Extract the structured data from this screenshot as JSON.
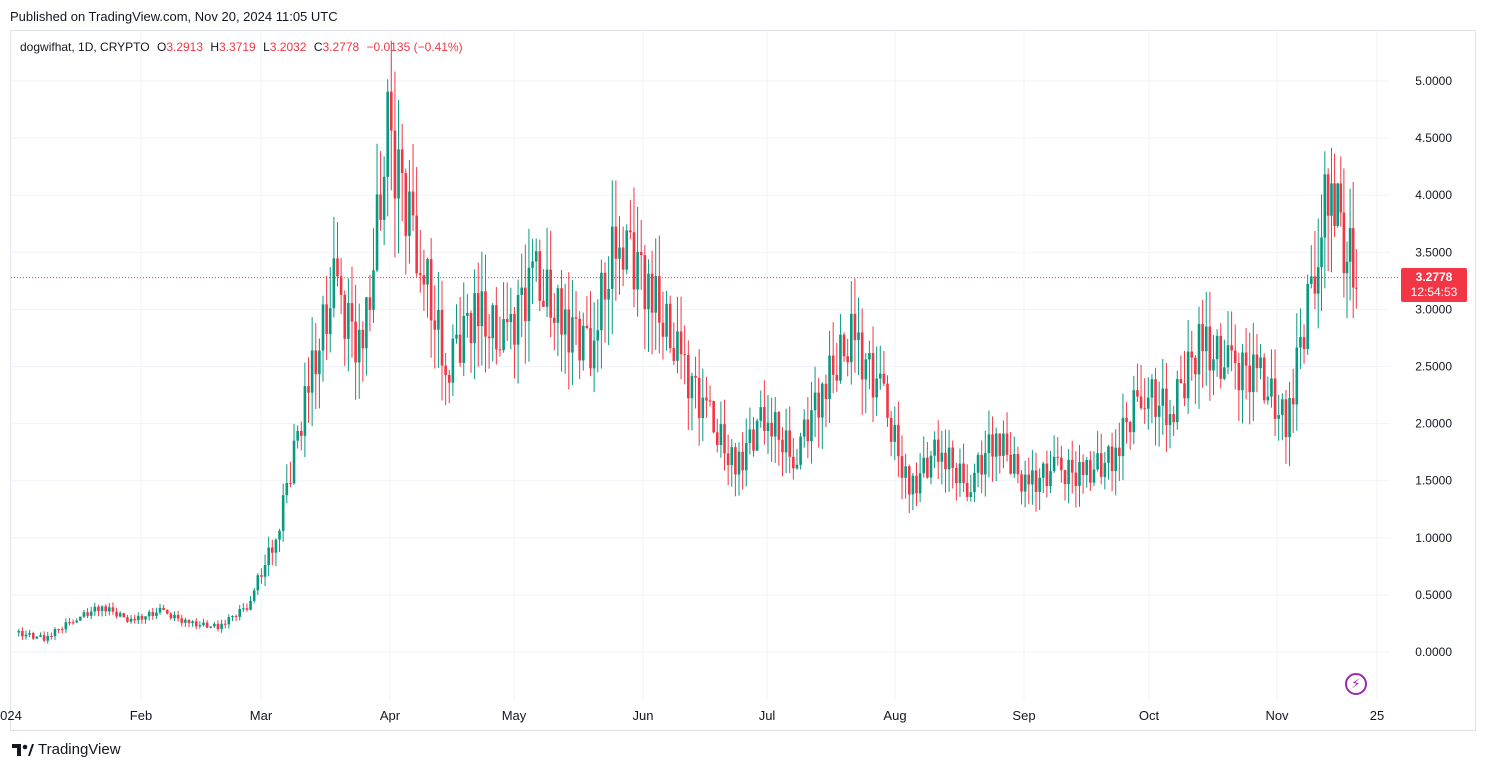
{
  "header": {
    "published": "Published on TradingView.com, Nov 20, 2024 11:05 UTC"
  },
  "legend": {
    "symbol": "dogwifhat, 1D, CRYPTO",
    "o_label": "O",
    "o": "3.2913",
    "h_label": "H",
    "h": "3.3719",
    "l_label": "L",
    "l": "3.2032",
    "c_label": "C",
    "c": "3.2778",
    "change": "−0.0135 (−0.41%)"
  },
  "price_tag": {
    "price": "3.2778",
    "countdown": "12:54:53"
  },
  "footer": {
    "brand": "TradingView",
    "logo_icon": "tradingview-logo-icon"
  },
  "colors": {
    "up": "#089981",
    "down": "#f23645",
    "grid": "#f0f3fa",
    "accent": "#9c27b0"
  },
  "chart_data": {
    "type": "candlestick",
    "y_ticks": [
      "5.0000",
      "4.5000",
      "4.0000",
      "3.5000",
      "3.0000",
      "2.5000",
      "2.0000",
      "1.5000",
      "1.0000",
      "0.5000",
      "0.0000"
    ],
    "x_ticks": [
      "024",
      "Feb",
      "Mar",
      "Apr",
      "May",
      "Jun",
      "Jul",
      "Aug",
      "Sep",
      "Oct",
      "Nov",
      "25"
    ],
    "ylim": [
      -0.4,
      5.5
    ],
    "last_price": 3.2778,
    "series": [
      {
        "date": "2024-01-01",
        "close": 0.17
      },
      {
        "date": "2024-01-08",
        "close": 0.12
      },
      {
        "date": "2024-01-15",
        "close": 0.28
      },
      {
        "date": "2024-01-22",
        "close": 0.4
      },
      {
        "date": "2024-01-29",
        "close": 0.27
      },
      {
        "date": "2024-02-05",
        "close": 0.36
      },
      {
        "date": "2024-02-12",
        "close": 0.25
      },
      {
        "date": "2024-02-19",
        "close": 0.22
      },
      {
        "date": "2024-02-26",
        "close": 0.4
      },
      {
        "date": "2024-03-04",
        "close": 1.0
      },
      {
        "date": "2024-03-11",
        "close": 2.2
      },
      {
        "date": "2024-03-18",
        "close": 3.2
      },
      {
        "date": "2024-03-25",
        "close": 2.6
      },
      {
        "date": "2024-03-31",
        "close": 4.55
      },
      {
        "date": "2024-04-07",
        "close": 3.6
      },
      {
        "date": "2024-04-14",
        "close": 2.5
      },
      {
        "date": "2024-04-21",
        "close": 3.0
      },
      {
        "date": "2024-04-28",
        "close": 2.7
      },
      {
        "date": "2024-05-05",
        "close": 3.3
      },
      {
        "date": "2024-05-12",
        "close": 2.9
      },
      {
        "date": "2024-05-19",
        "close": 2.7
      },
      {
        "date": "2024-05-26",
        "close": 3.7
      },
      {
        "date": "2024-06-02",
        "close": 3.2
      },
      {
        "date": "2024-06-09",
        "close": 2.6
      },
      {
        "date": "2024-06-16",
        "close": 2.1
      },
      {
        "date": "2024-06-23",
        "close": 1.6
      },
      {
        "date": "2024-06-30",
        "close": 2.1
      },
      {
        "date": "2024-07-07",
        "close": 1.7
      },
      {
        "date": "2024-07-14",
        "close": 2.3
      },
      {
        "date": "2024-07-21",
        "close": 2.75
      },
      {
        "date": "2024-07-28",
        "close": 2.3
      },
      {
        "date": "2024-08-04",
        "close": 1.4
      },
      {
        "date": "2024-08-11",
        "close": 1.8
      },
      {
        "date": "2024-08-18",
        "close": 1.45
      },
      {
        "date": "2024-08-25",
        "close": 1.9
      },
      {
        "date": "2024-09-01",
        "close": 1.45
      },
      {
        "date": "2024-09-08",
        "close": 1.6
      },
      {
        "date": "2024-09-15",
        "close": 1.55
      },
      {
        "date": "2024-09-22",
        "close": 1.7
      },
      {
        "date": "2024-09-29",
        "close": 2.3
      },
      {
        "date": "2024-10-06",
        "close": 2.1
      },
      {
        "date": "2024-10-13",
        "close": 2.7
      },
      {
        "date": "2024-10-20",
        "close": 2.5
      },
      {
        "date": "2024-10-27",
        "close": 2.45
      },
      {
        "date": "2024-11-03",
        "close": 2.0
      },
      {
        "date": "2024-11-10",
        "close": 3.4
      },
      {
        "date": "2024-11-14",
        "close": 4.2
      },
      {
        "date": "2024-11-17",
        "close": 3.6
      },
      {
        "date": "2024-11-20",
        "close": 3.28
      }
    ]
  }
}
